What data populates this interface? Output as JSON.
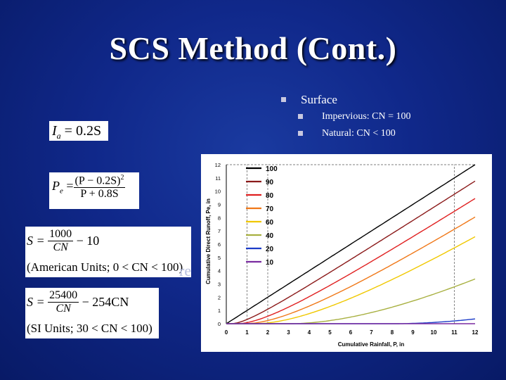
{
  "slide": {
    "title": "SCS Method (Cont.)",
    "bullet_main": "Surface",
    "bullet_sub1": "Impervious: CN = 100",
    "bullet_sub2": "Natural: CN < 100",
    "behind_text": "re"
  },
  "equations": {
    "ia": {
      "lhs": "I",
      "sub": "a",
      "rhs": " = 0.2S"
    },
    "pe": {
      "lhs": "P",
      "sub": "e",
      "eq": " = ",
      "num": "(P − 0.2S)",
      "num_exp": "2",
      "den": "P + 0.8S"
    },
    "s_us": {
      "lhs": "S = ",
      "num": "1000",
      "den": "CN",
      "tail": " − 10",
      "note": "(American Units; 0 < CN < 100)"
    },
    "s_si": {
      "lhs": "S = ",
      "num": "25400",
      "den": "CN",
      "tail": " − 254CN",
      "note": "(SI Units; 30 < CN < 100)"
    }
  },
  "chart_data": {
    "type": "line",
    "xlabel": "Cumulative Rainfall, P, in",
    "ylabel": "Cumulative Direct Runoff, Pe, in",
    "xlim": [
      0,
      12
    ],
    "ylim": [
      0,
      12
    ],
    "xticks": [
      0,
      1,
      2,
      3,
      4,
      5,
      6,
      7,
      8,
      9,
      10,
      11,
      12
    ],
    "yticks": [
      0,
      1,
      2,
      3,
      4,
      5,
      6,
      7,
      8,
      9,
      10,
      11,
      12
    ],
    "grid": "dashed verticals at 1, 2, 11; dashed horizontal at 12",
    "legend": "top-left",
    "series": [
      {
        "name": "100",
        "cn": 100,
        "color": "#000000"
      },
      {
        "name": "90",
        "cn": 90,
        "color": "#8b1a1a"
      },
      {
        "name": "80",
        "cn": 80,
        "color": "#e02020"
      },
      {
        "name": "70",
        "cn": 70,
        "color": "#f07818"
      },
      {
        "name": "60",
        "cn": 60,
        "color": "#f0c800"
      },
      {
        "name": "40",
        "cn": 40,
        "color": "#a8b040"
      },
      {
        "name": "20",
        "cn": 20,
        "color": "#1c3cc8"
      },
      {
        "name": "10",
        "cn": 10,
        "color": "#7a2ca0"
      }
    ]
  }
}
